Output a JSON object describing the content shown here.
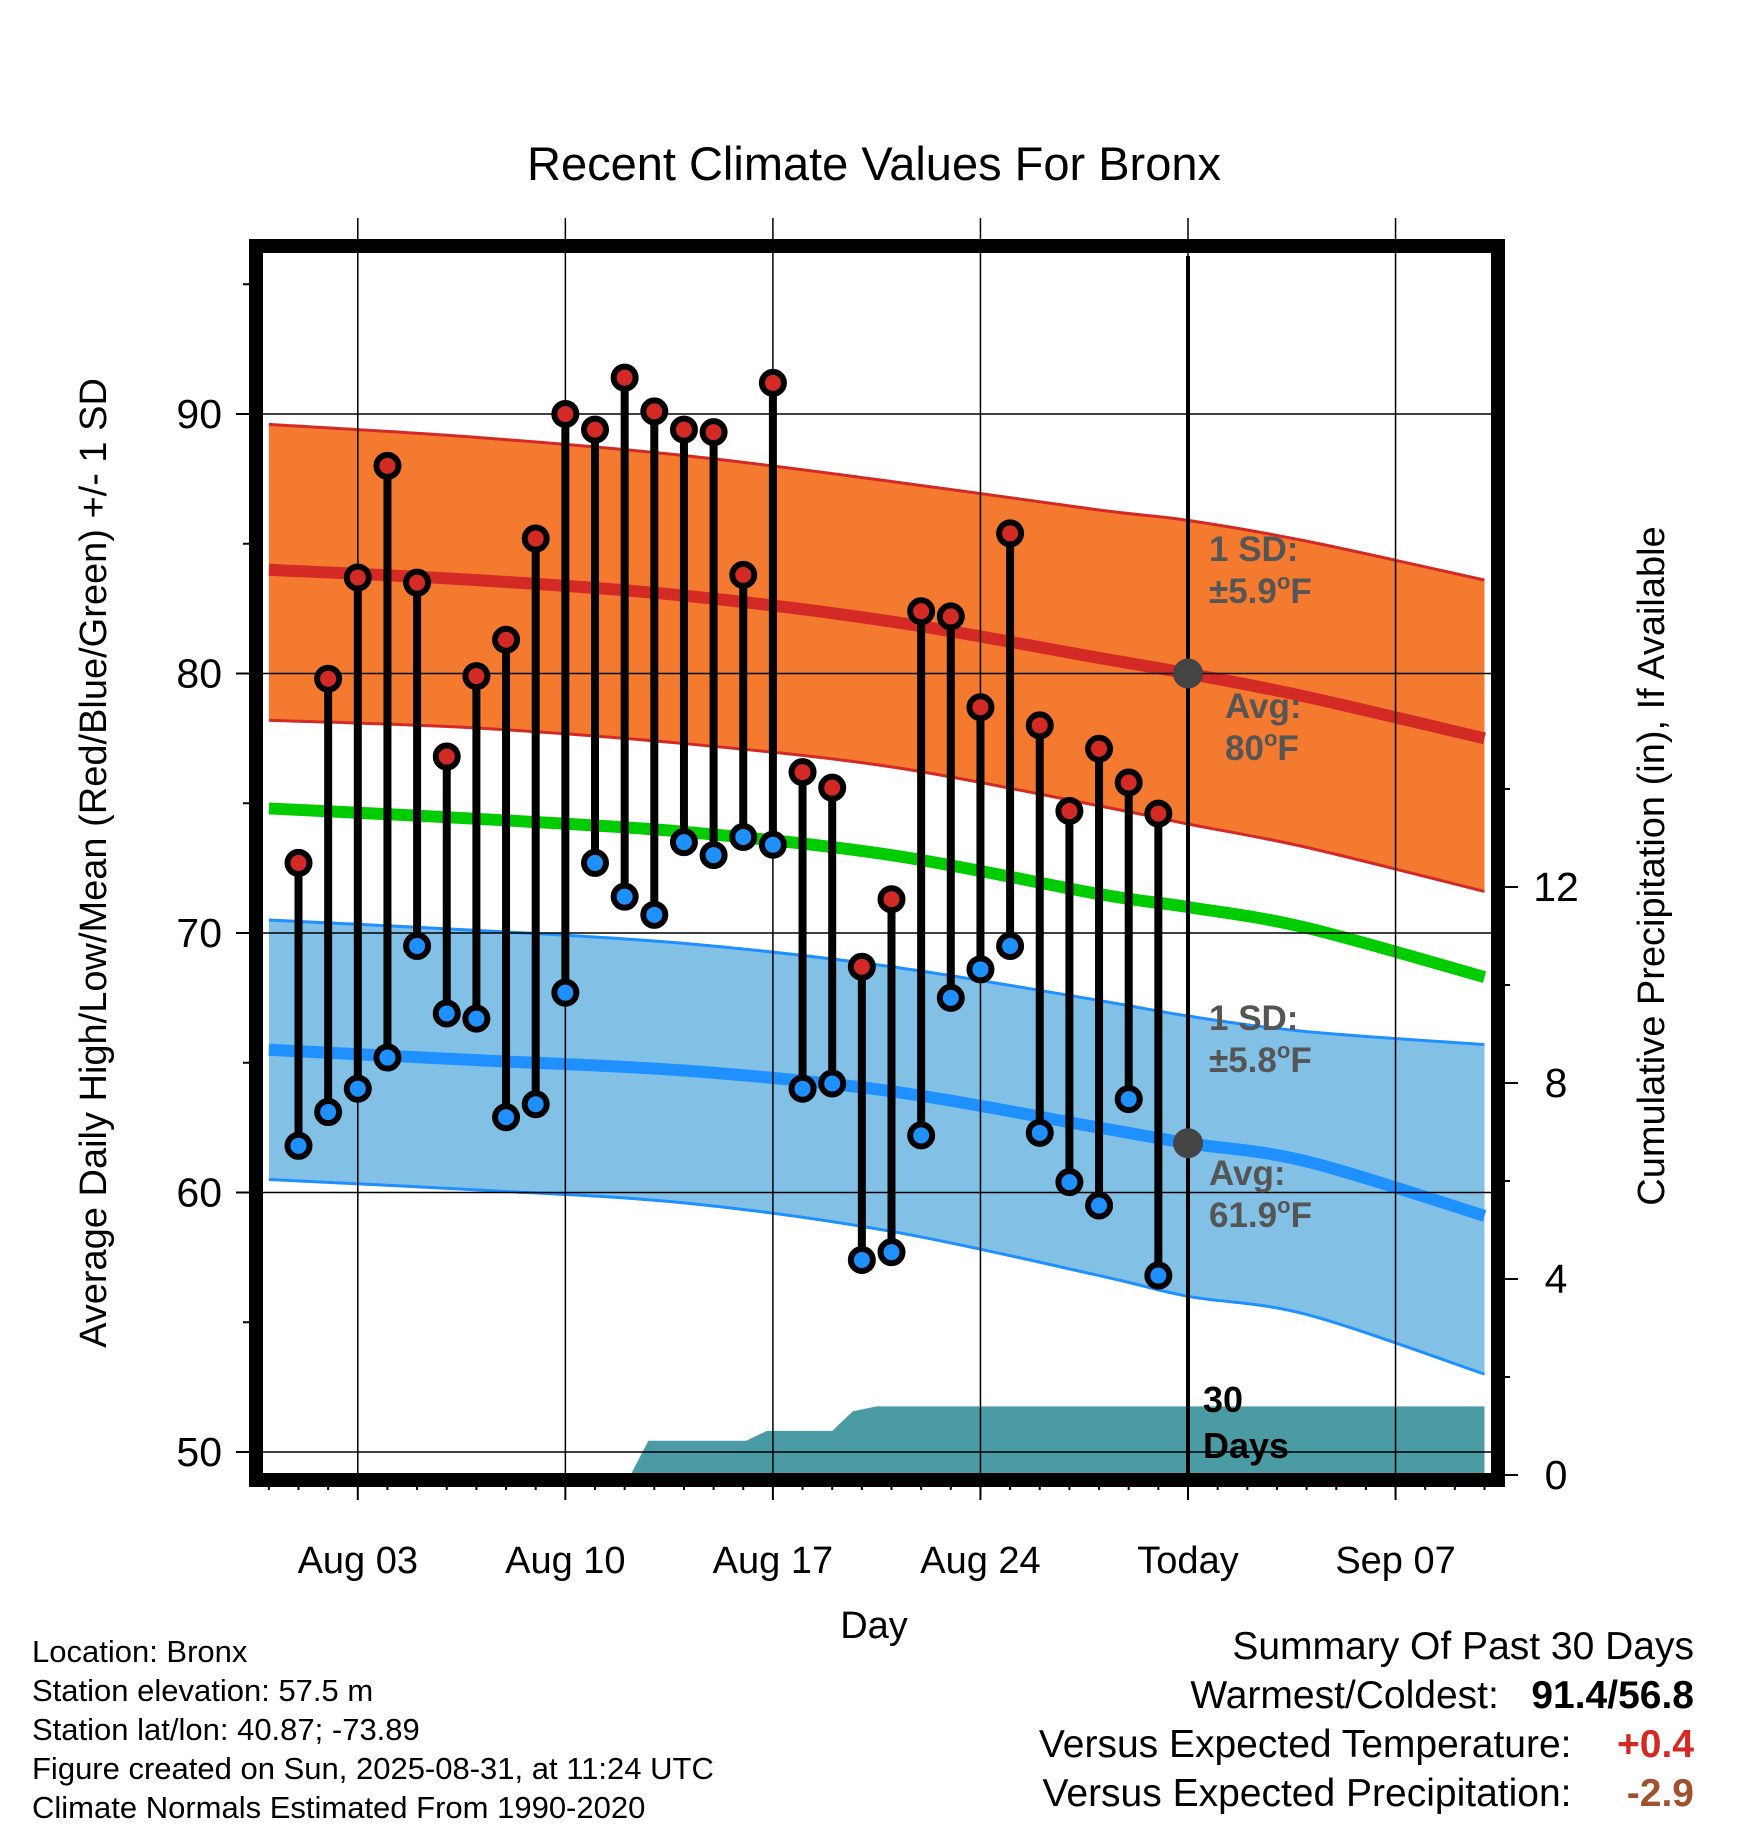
{
  "chart_data": {
    "type": "line",
    "title": "Recent Climate Values For Bronx",
    "xlabel": "Day",
    "ylabel": "Average Daily High/Low/Mean (Red/Blue/Green) +/- 1 SD",
    "y2label": "Cumulative Precipitation (in), If Available",
    "x_range_days": [
      -31,
      10
    ],
    "x_ticks": [
      {
        "day": -28,
        "label": "Aug 03"
      },
      {
        "day": -21,
        "label": "Aug 10"
      },
      {
        "day": -14,
        "label": "Aug 17"
      },
      {
        "day": -7,
        "label": "Aug 24"
      },
      {
        "day": 0,
        "label": "Today"
      },
      {
        "day": 7,
        "label": "Sep 07"
      }
    ],
    "ylim": [
      49.2,
      95.8
    ],
    "y_ticks": [
      50,
      60,
      70,
      80,
      90
    ],
    "y2lim": [
      0,
      18
    ],
    "y2_ticks": [
      0,
      4,
      8,
      12
    ],
    "grid": true,
    "normals_days": [
      -31,
      -24,
      -17,
      -10,
      -3,
      0,
      4,
      10
    ],
    "normal_high": [
      84.0,
      83.6,
      83.0,
      82.0,
      80.6,
      80.0,
      79.1,
      77.5
    ],
    "normal_high_upper": [
      89.6,
      89.1,
      88.4,
      87.4,
      86.3,
      85.9,
      85.1,
      83.6
    ],
    "normal_high_lower": [
      78.2,
      77.9,
      77.3,
      76.4,
      74.9,
      74.2,
      73.3,
      71.6
    ],
    "normal_mean": [
      74.8,
      74.4,
      73.9,
      73.0,
      71.5,
      71.0,
      70.2,
      68.3
    ],
    "normal_low": [
      65.5,
      65.1,
      64.7,
      63.9,
      62.5,
      61.9,
      61.2,
      59.1
    ],
    "normal_low_upper": [
      70.5,
      70.1,
      69.6,
      68.7,
      67.4,
      66.8,
      66.2,
      65.7
    ],
    "normal_low_lower": [
      60.5,
      60.1,
      59.6,
      58.5,
      56.8,
      56.0,
      55.3,
      53.0
    ],
    "series": [
      {
        "name": "Daily High",
        "days": [
          -30,
          -29,
          -28,
          -27,
          -26,
          -25,
          -24,
          -23,
          -22,
          -21,
          -20,
          -19,
          -18,
          -17,
          -16,
          -15,
          -14,
          -13,
          -12,
          -11,
          -10,
          -9,
          -8,
          -7,
          -6,
          -5,
          -4,
          -3,
          -2,
          -1
        ],
        "values": [
          72.7,
          79.8,
          83.7,
          88.0,
          83.5,
          76.8,
          79.9,
          81.3,
          85.2,
          90.0,
          89.4,
          91.4,
          90.1,
          89.4,
          89.3,
          83.8,
          91.2,
          76.2,
          75.6,
          68.7,
          71.3,
          82.4,
          82.2,
          78.7,
          85.4,
          78.0,
          74.7,
          77.1,
          75.8,
          74.6
        ]
      },
      {
        "name": "Daily Low",
        "days": [
          -30,
          -29,
          -28,
          -27,
          -26,
          -25,
          -24,
          -23,
          -22,
          -21,
          -20,
          -19,
          -18,
          -17,
          -16,
          -15,
          -14,
          -13,
          -12,
          -11,
          -10,
          -9,
          -8,
          -7,
          -6,
          -5,
          -4,
          -3,
          -2,
          -1
        ],
        "values": [
          61.8,
          63.1,
          64.0,
          65.2,
          69.5,
          66.9,
          66.7,
          62.9,
          63.4,
          67.7,
          72.7,
          71.4,
          70.7,
          73.5,
          73.0,
          73.7,
          73.4,
          64.0,
          64.2,
          57.4,
          57.7,
          62.2,
          67.5,
          68.6,
          69.5,
          62.3,
          60.4,
          59.5,
          63.6,
          56.8
        ]
      }
    ],
    "precip": {
      "days": [
        -18.8,
        -18.2,
        -16.3,
        -14.9,
        -14.2,
        -13.8,
        -12.0,
        -11.3,
        -10.5,
        10
      ],
      "values": [
        0,
        0.7,
        0.7,
        0.7,
        0.9,
        0.9,
        0.9,
        1.3,
        1.4,
        1.4
      ]
    },
    "today_markers": {
      "high": 80.0,
      "low": 61.9
    },
    "annotations": {
      "high_sd_line1": "1 SD:",
      "high_sd_line2": "±5.9",
      "high_sd_unit": "F",
      "high_avg_line1": "Avg:",
      "high_avg_line2": "80",
      "high_avg_unit": "F",
      "low_sd_line1": "1 SD:",
      "low_sd_line2": "±5.8",
      "low_sd_unit": "F",
      "low_avg_line1": "Avg:",
      "low_avg_line2": "61.9",
      "low_avg_unit": "F",
      "degree_symbol": "o",
      "precip_days_line1": "30",
      "precip_days_line2": "Days"
    },
    "colors": {
      "high_band": "#f47a30",
      "high_line": "#d42a26",
      "low_band": "#82c0e6",
      "low_line": "#1e90ff",
      "mean_line": "#00cc00",
      "precip_fill": "#4a9ba3",
      "high_dot": "#d42a26",
      "low_dot": "#1e90ff",
      "annotation_text": "#555555"
    }
  },
  "footer": {
    "location": "Location: Bronx",
    "elevation": "Station elevation: 57.5 m",
    "latlon": "Station lat/lon: 40.87; -73.89",
    "created": "Figure created on Sun, 2025-08-31, at 11:24 UTC",
    "normals": "Climate Normals Estimated From 1990-2020"
  },
  "summary": {
    "title": "Summary Of Past 30 Days",
    "warmest_label": "Warmest/Coldest:",
    "warmest_value": "91.4",
    "coldest_value": "56.8",
    "temp_label": "Versus Expected Temperature:",
    "temp_value": "+0.4",
    "temp_color": "#d42a26",
    "precip_label": "Versus Expected Precipitation:",
    "precip_value": "-2.9",
    "precip_color": "#a0522d"
  }
}
